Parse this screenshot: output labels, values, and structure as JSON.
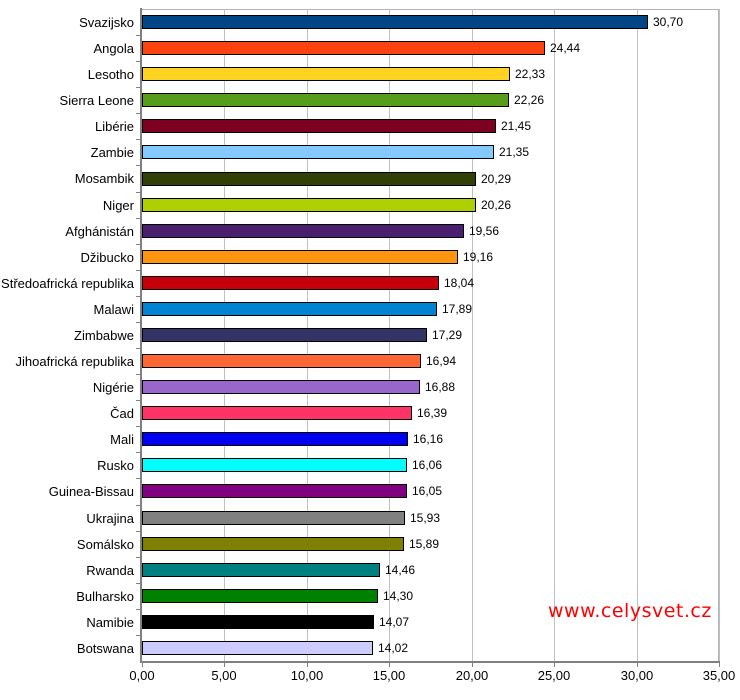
{
  "watermark": {
    "text": "www.celysvet.cz",
    "color": "#ff0000"
  },
  "chart_data": {
    "type": "bar",
    "orientation": "horizontal",
    "title": "",
    "xlabel": "",
    "ylabel": "",
    "xlim": [
      0,
      35
    ],
    "grid": true,
    "legend": "none",
    "x_tick_values": [
      0,
      5,
      10,
      15,
      20,
      25,
      30,
      35
    ],
    "x_tick_labels": [
      "0,00",
      "5,00",
      "10,00",
      "15,00",
      "20,00",
      "25,00",
      "30,00",
      "35,00"
    ],
    "categories": [
      "Svazijsko",
      "Angola",
      "Lesotho",
      "Sierra Leone",
      "Libérie",
      "Zambie",
      "Mosambik",
      "Niger",
      "Afghánistán",
      "Džibucko",
      "Středoafrická republika",
      "Malawi",
      "Zimbabwe",
      "Jihoafrická republika",
      "Nigérie",
      "Čad",
      "Mali",
      "Rusko",
      "Guinea-Bissau",
      "Ukrajina",
      "Somálsko",
      "Rwanda",
      "Bulharsko",
      "Namibie",
      "Botswana"
    ],
    "values": [
      30.7,
      24.44,
      22.33,
      22.26,
      21.45,
      21.35,
      20.29,
      20.26,
      19.56,
      19.16,
      18.04,
      17.89,
      17.29,
      16.94,
      16.88,
      16.39,
      16.16,
      16.06,
      16.05,
      15.93,
      15.89,
      14.46,
      14.3,
      14.07,
      14.02
    ],
    "value_labels": [
      "30,70",
      "24,44",
      "22,33",
      "22,26",
      "21,45",
      "21,35",
      "20,29",
      "20,26",
      "19,56",
      "19,16",
      "18,04",
      "17,89",
      "17,29",
      "16,94",
      "16,88",
      "16,39",
      "16,16",
      "16,06",
      "16,05",
      "15,93",
      "15,89",
      "14,46",
      "14,30",
      "14,07",
      "14,02"
    ],
    "bar_colors": [
      "#004586",
      "#FF420E",
      "#FFD320",
      "#579D1C",
      "#7E0021",
      "#83CAFF",
      "#314004",
      "#AECF00",
      "#4B1F6F",
      "#FF950E",
      "#C5000B",
      "#0084D1",
      "#333366",
      "#FF6633",
      "#9966CC",
      "#FF3366",
      "#0000F0",
      "#00FFFF",
      "#800080",
      "#808080",
      "#808000",
      "#008080",
      "#008000",
      "#000000",
      "#CCCCFF"
    ],
    "bar_border_color": "#000000",
    "grid_color": "#c0c0c0",
    "axis_color": "#808080"
  }
}
